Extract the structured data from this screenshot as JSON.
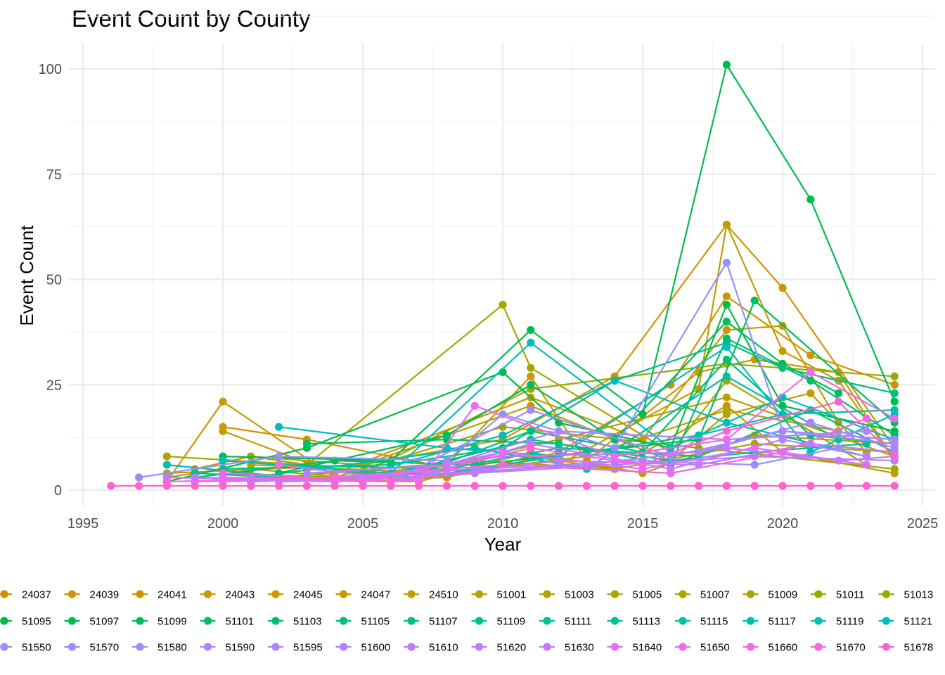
{
  "chart_data": {
    "type": "line",
    "title": "Event Count by County",
    "xlabel": "Year",
    "ylabel": "Event Count",
    "xlim": [
      1995,
      2025
    ],
    "ylim": [
      0,
      105
    ],
    "x_ticks": [
      1995,
      2000,
      2005,
      2010,
      2015,
      2020,
      2025
    ],
    "y_ticks": [
      0,
      25,
      50,
      75,
      100
    ],
    "grid": true,
    "legend_position": "bottom",
    "series": [
      {
        "name": "24037",
        "color": "#D39200",
        "x": [
          1998,
          2000,
          2002,
          2008,
          2011,
          2014,
          2018,
          2020,
          2024
        ],
        "y": [
          3,
          5,
          2,
          3,
          8,
          5,
          20,
          9,
          4
        ]
      },
      {
        "name": "24039",
        "color": "#D09400",
        "x": [
          2000,
          2003,
          2009,
          2012,
          2016,
          2018,
          2021,
          2024
        ],
        "y": [
          15,
          12,
          4,
          9,
          25,
          46,
          32,
          25
        ]
      },
      {
        "name": "24041",
        "color": "#CD9600",
        "x": [
          1999,
          2001,
          2005,
          2010,
          2014,
          2018,
          2020,
          2024
        ],
        "y": [
          5,
          8,
          6,
          12,
          27,
          63,
          48,
          10
        ]
      },
      {
        "name": "24043",
        "color": "#CA9800",
        "x": [
          1998,
          2000,
          2004,
          2008,
          2011,
          2013,
          2017,
          2019,
          2022,
          2024
        ],
        "y": [
          2,
          21,
          3,
          6,
          27,
          7,
          28,
          31,
          28,
          7
        ]
      },
      {
        "name": "24045",
        "color": "#C69A00",
        "x": [
          2000,
          2004,
          2011,
          2015,
          2018,
          2020,
          2022
        ],
        "y": [
          14,
          4,
          22,
          12,
          38,
          39,
          16
        ]
      },
      {
        "name": "24047",
        "color": "#C29C00",
        "x": [
          2001,
          2006,
          2012,
          2017,
          2018,
          2020,
          2022,
          2024
        ],
        "y": [
          5,
          2,
          6,
          24,
          63,
          33,
          26,
          7
        ]
      },
      {
        "name": "24510",
        "color": "#BE9E00",
        "x": [
          1998,
          2005,
          2011,
          2016,
          2018,
          2021,
          2023
        ],
        "y": [
          4,
          6,
          20,
          7,
          18,
          23,
          9
        ]
      },
      {
        "name": "51001",
        "color": "#B9A000",
        "x": [
          2000,
          2007,
          2011,
          2015,
          2019,
          2024
        ],
        "y": [
          3,
          2,
          9,
          4,
          13,
          11
        ]
      },
      {
        "name": "51003",
        "color": "#B4A200",
        "x": [
          1999,
          2006,
          2012,
          2018,
          2024
        ],
        "y": [
          2,
          3,
          12,
          22,
          8
        ]
      },
      {
        "name": "51005",
        "color": "#AFA400",
        "x": [
          2001,
          2008,
          2013,
          2018,
          2022
        ],
        "y": [
          6,
          4,
          8,
          19,
          14
        ]
      },
      {
        "name": "51007",
        "color": "#AAA600",
        "x": [
          2002,
          2009,
          2014,
          2019,
          2024
        ],
        "y": [
          3,
          7,
          5,
          11,
          9
        ]
      },
      {
        "name": "51009",
        "color": "#A4A800",
        "x": [
          1998,
          2003,
          2010,
          2011,
          2016,
          2018,
          2023
        ],
        "y": [
          8,
          6,
          44,
          29,
          9,
          26,
          6
        ]
      },
      {
        "name": "51011",
        "color": "#9EA900",
        "x": [
          2000,
          2004,
          2010,
          2017,
          2024
        ],
        "y": [
          4,
          3,
          15,
          10,
          5
        ]
      },
      {
        "name": "51013",
        "color": "#97AB00",
        "x": [
          2001,
          2005,
          2011,
          2018,
          2024
        ],
        "y": [
          8,
          4,
          24,
          30,
          27
        ]
      },
      {
        "name": "51095",
        "color": "#00BA42",
        "x": [
          1998,
          2003,
          2010,
          2012,
          2016,
          2018,
          2020,
          2024
        ],
        "y": [
          2,
          10,
          28,
          16,
          10,
          44,
          20,
          14
        ]
      },
      {
        "name": "51097",
        "color": "#00BB4E",
        "x": [
          2000,
          2006,
          2011,
          2015,
          2018,
          2021,
          2024
        ],
        "y": [
          8,
          7,
          38,
          18,
          101,
          69,
          21
        ]
      },
      {
        "name": "51099",
        "color": "#00BC59",
        "x": [
          2002,
          2008,
          2011,
          2014,
          2018,
          2020,
          2022
        ],
        "y": [
          4,
          13,
          25,
          12,
          40,
          30,
          23
        ]
      },
      {
        "name": "51101",
        "color": "#00BD63",
        "x": [
          1999,
          2004,
          2009,
          2013,
          2017,
          2019,
          2024
        ],
        "y": [
          3,
          7,
          6,
          9,
          12,
          45,
          16
        ]
      },
      {
        "name": "51103",
        "color": "#00BE6D",
        "x": [
          2003,
          2008,
          2012,
          2016,
          2018,
          2021,
          2024
        ],
        "y": [
          11,
          12,
          11,
          6,
          36,
          26,
          13
        ]
      },
      {
        "name": "51105",
        "color": "#00BF77",
        "x": [
          2001,
          2007,
          2011,
          2015,
          2018,
          2021,
          2024
        ],
        "y": [
          2,
          4,
          14,
          9,
          31,
          13,
          11
        ]
      },
      {
        "name": "51107",
        "color": "#00BF81",
        "x": [
          2000,
          2006,
          2010,
          2014,
          2018,
          2020,
          2024
        ],
        "y": [
          5,
          6,
          10,
          26,
          35,
          29,
          23
        ]
      },
      {
        "name": "51109",
        "color": "#00C08A",
        "x": [
          2002,
          2008,
          2012,
          2017,
          2021,
          2024
        ],
        "y": [
          6,
          5,
          10,
          8,
          19,
          9
        ]
      },
      {
        "name": "51111",
        "color": "#00C094",
        "x": [
          1999,
          2005,
          2011,
          2016,
          2019,
          2023
        ],
        "y": [
          4,
          2,
          12,
          7,
          9,
          11
        ]
      },
      {
        "name": "51113",
        "color": "#00C09D",
        "x": [
          2001,
          2009,
          2013,
          2018,
          2022
        ],
        "y": [
          3,
          10,
          5,
          27,
          12
        ]
      },
      {
        "name": "51115",
        "color": "#00C0A6",
        "x": [
          2003,
          2007,
          2012,
          2017,
          2020,
          2024
        ],
        "y": [
          5,
          3,
          8,
          13,
          18,
          19
        ]
      },
      {
        "name": "51117",
        "color": "#00BFB0",
        "x": [
          1998,
          2004,
          2010,
          2014,
          2018,
          2023
        ],
        "y": [
          6,
          2,
          13,
          26,
          16,
          8
        ]
      },
      {
        "name": "51119",
        "color": "#00BEB9",
        "x": [
          2000,
          2006,
          2011,
          2016,
          2020,
          2024
        ],
        "y": [
          7,
          4,
          35,
          10,
          22,
          12
        ]
      },
      {
        "name": "51121",
        "color": "#00BDC2",
        "x": [
          2002,
          2008,
          2012,
          2018,
          2021,
          2024
        ],
        "y": [
          15,
          10,
          8,
          34,
          9,
          18
        ]
      },
      {
        "name": "51550",
        "color": "#9590FF",
        "x": [
          1997,
          2002,
          2008,
          2010,
          2014,
          2018,
          2020,
          2024
        ],
        "y": [
          3,
          8,
          7,
          18,
          10,
          54,
          14,
          11
        ]
      },
      {
        "name": "51570",
        "color": "#9B8DFF",
        "x": [
          1999,
          2004,
          2009,
          2015,
          2019,
          2022
        ],
        "y": [
          2,
          3,
          5,
          7,
          6,
          10
        ]
      },
      {
        "name": "51580",
        "color": "#A18AFF",
        "x": [
          2001,
          2006,
          2011,
          2016,
          2020,
          2024
        ],
        "y": [
          3,
          2,
          19,
          8,
          14,
          12
        ]
      },
      {
        "name": "51590",
        "color": "#A787FF",
        "x": [
          2003,
          2008,
          2012,
          2018,
          2023
        ],
        "y": [
          4,
          6,
          14,
          12,
          14
        ]
      },
      {
        "name": "51595",
        "color": "#AD84FF",
        "x": [
          2000,
          2005,
          2010,
          2017,
          2021,
          2024
        ],
        "y": [
          2,
          3,
          8,
          9,
          16,
          10
        ]
      },
      {
        "name": "51600",
        "color": "#B381FF",
        "x": [
          1998,
          2004,
          2009,
          2014,
          2019,
          2024
        ],
        "y": [
          3,
          2,
          4,
          6,
          8,
          7
        ]
      },
      {
        "name": "51610",
        "color": "#B97EFF",
        "x": [
          2002,
          2007,
          2011,
          2016,
          2020,
          2023
        ],
        "y": [
          2,
          3,
          11,
          5,
          12,
          8
        ]
      },
      {
        "name": "51620",
        "color": "#BE7BFF",
        "x": [
          1999,
          2006,
          2012,
          2017,
          2021,
          2024
        ],
        "y": [
          3,
          2,
          7,
          6,
          11,
          9
        ]
      },
      {
        "name": "51630",
        "color": "#C378FF",
        "x": [
          2001,
          2008,
          2013,
          2018,
          2022,
          2024
        ],
        "y": [
          2,
          4,
          6,
          10,
          7,
          8
        ]
      },
      {
        "name": "51640",
        "color": "#E26EF7",
        "x": [
          2000,
          2005,
          2010,
          2015,
          2019,
          2023
        ],
        "y": [
          3,
          2,
          9,
          5,
          10,
          6
        ]
      },
      {
        "name": "51650",
        "color": "#EB6AEF",
        "x": [
          2002,
          2007,
          2009,
          2014,
          2018,
          2021,
          2024
        ],
        "y": [
          6,
          2,
          20,
          8,
          12,
          28,
          17
        ]
      },
      {
        "name": "51660",
        "color": "#F367E5",
        "x": [
          1998,
          2004,
          2010,
          2016,
          2020,
          2023
        ],
        "y": [
          2,
          3,
          6,
          4,
          9,
          17
        ]
      },
      {
        "name": "51670",
        "color": "#F964DB",
        "x": [
          2000,
          2006,
          2011,
          2015,
          2018,
          2022,
          2024
        ],
        "y": [
          4,
          2,
          10,
          6,
          14,
          21,
          8
        ]
      },
      {
        "name": "51678",
        "color": "#FD62CF",
        "x": [
          1996,
          1997,
          1998,
          1999,
          2000,
          2001,
          2002,
          2003,
          2004,
          2005,
          2006,
          2007,
          2008,
          2009,
          2010,
          2011,
          2012,
          2013,
          2014,
          2015,
          2016,
          2017,
          2018,
          2019,
          2020,
          2021,
          2022,
          2023,
          2024
        ],
        "y": [
          1,
          1,
          1,
          1,
          1,
          1,
          1,
          1,
          1,
          1,
          1,
          1,
          1,
          1,
          1,
          1,
          1,
          1,
          1,
          1,
          1,
          1,
          1,
          1,
          1,
          1,
          1,
          1,
          1
        ]
      }
    ]
  }
}
